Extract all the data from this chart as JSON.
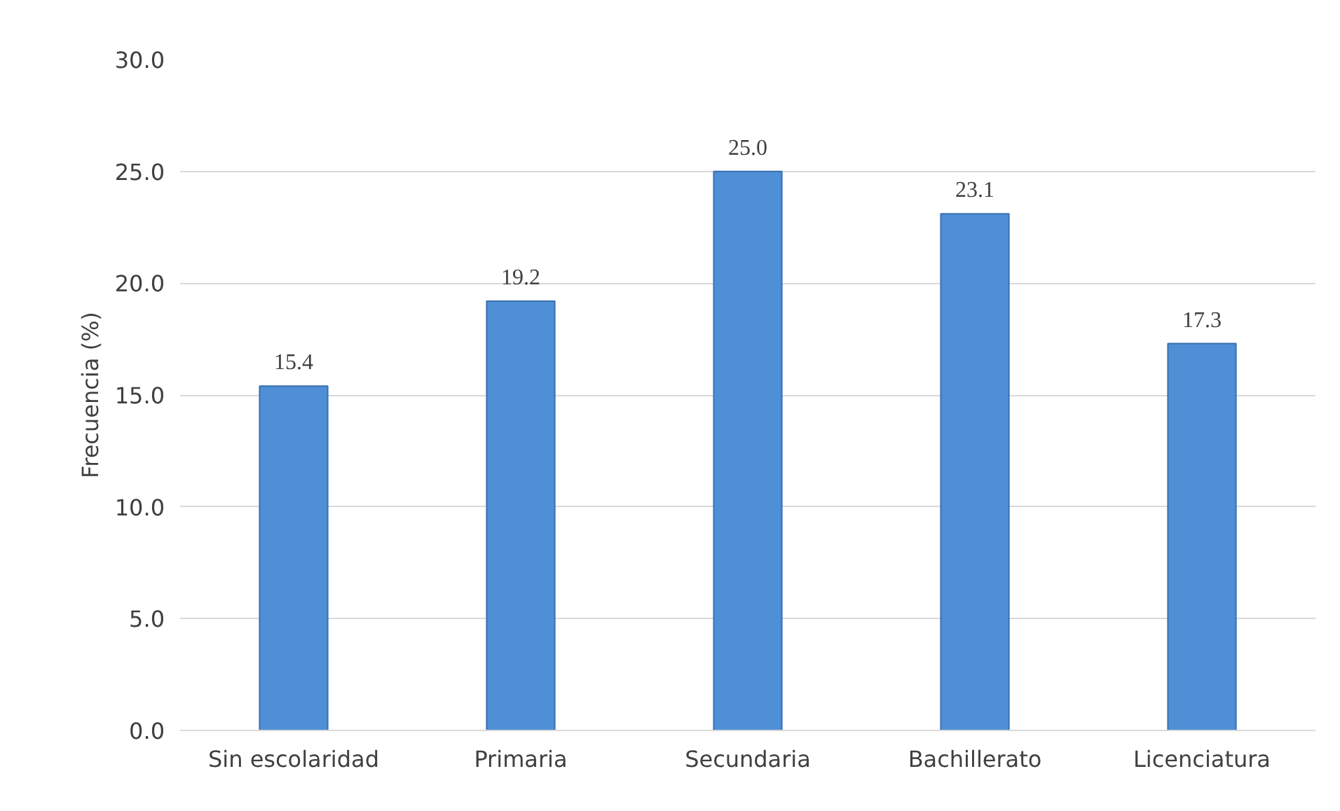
{
  "chart_data": {
    "type": "bar",
    "ylabel": "Frecuencia (%)",
    "categories": [
      "Sin escolaridad",
      "Primaria",
      "Secundaria",
      "Bachillerato",
      "Licenciatura"
    ],
    "values": [
      15.4,
      19.2,
      25.0,
      23.1,
      17.3
    ],
    "value_labels": [
      "15.4",
      "19.2",
      "25.0",
      "23.1",
      "17.3"
    ],
    "color": "#4f8fd6",
    "ylim": [
      0,
      30
    ],
    "yticks": [
      {
        "value": 0,
        "label": "0.0"
      },
      {
        "value": 5,
        "label": "5.0"
      },
      {
        "value": 10,
        "label": "10.0"
      },
      {
        "value": 15,
        "label": "15.0"
      },
      {
        "value": 20,
        "label": "20.0"
      },
      {
        "value": 25,
        "label": "25.0"
      },
      {
        "value": 30,
        "label": "30.0"
      }
    ],
    "grid": "y"
  }
}
